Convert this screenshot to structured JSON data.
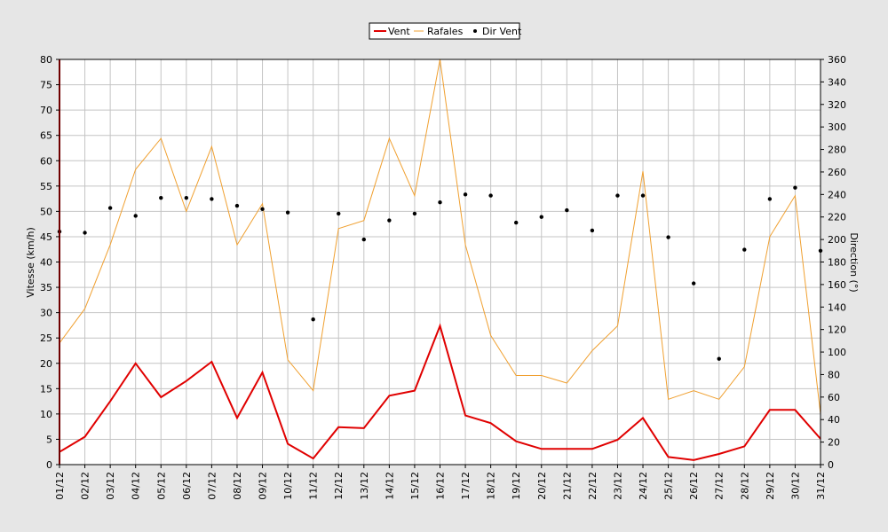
{
  "chart_data": {
    "type": "line",
    "categories": [
      "01/12",
      "02/12",
      "03/12",
      "04/12",
      "05/12",
      "06/12",
      "07/12",
      "08/12",
      "09/12",
      "10/12",
      "11/12",
      "12/12",
      "13/12",
      "14/12",
      "15/12",
      "16/12",
      "17/12",
      "18/12",
      "19/12",
      "20/12",
      "21/12",
      "22/12",
      "23/12",
      "24/12",
      "25/12",
      "26/12",
      "27/12",
      "28/12",
      "29/12",
      "30/12",
      "31/12"
    ],
    "ylabel": "Vitesse (km/h)",
    "y2label": "Direction (°)",
    "ylim": [
      0,
      80
    ],
    "y2lim": [
      0,
      360
    ],
    "yticks": [
      "0",
      "5",
      "10",
      "15",
      "20",
      "25",
      "30",
      "35",
      "40",
      "45",
      "50",
      "55",
      "60",
      "65",
      "70",
      "75",
      "80"
    ],
    "y2ticks": [
      "0",
      "20",
      "40",
      "60",
      "80",
      "100",
      "120",
      "140",
      "160",
      "180",
      "200",
      "220",
      "240",
      "260",
      "280",
      "300",
      "320",
      "340",
      "360"
    ],
    "grid": true,
    "legend_position": "top-center",
    "series": [
      {
        "name": "Vent",
        "axis": "left",
        "style": "line",
        "color": "#e00000",
        "values": [
          2.5,
          5.5,
          12.5,
          20,
          13.3,
          16.5,
          20.3,
          9.2,
          18.2,
          4.1,
          1.2,
          7.4,
          7.2,
          13.6,
          14.6,
          27.4,
          9.7,
          8.2,
          4.6,
          3.1,
          3.1,
          3.1,
          4.9,
          9.2,
          1.5,
          0.9,
          2.1,
          3.6,
          10.8,
          10.8,
          5.1
        ]
      },
      {
        "name": "Rafales",
        "axis": "left",
        "style": "line",
        "color": "#f0a030",
        "values": [
          24,
          30.8,
          43.4,
          58.3,
          64.4,
          50,
          62.8,
          43.4,
          51.5,
          20.7,
          14.6,
          46.6,
          48.2,
          64.4,
          53.1,
          81,
          43.4,
          25.5,
          17.6,
          17.6,
          16.1,
          22.5,
          27.4,
          57.9,
          12.9,
          14.6,
          12.9,
          19.3,
          45,
          53.1,
          10
        ]
      },
      {
        "name": "Dir Vent",
        "axis": "right",
        "style": "dots",
        "color": "#000000",
        "values": [
          207,
          206,
          228,
          221,
          237,
          237,
          236,
          230,
          227,
          224,
          129,
          223,
          200,
          217,
          223,
          233,
          240,
          239,
          215,
          220,
          226,
          208,
          239,
          239,
          202,
          161,
          94,
          191,
          236,
          246,
          190
        ]
      }
    ]
  }
}
